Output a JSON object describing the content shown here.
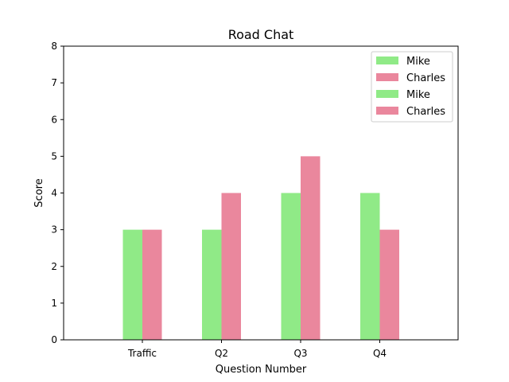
{
  "chart_data": {
    "type": "bar",
    "title": "Road Chat",
    "xlabel": "Question Number",
    "ylabel": "Score",
    "categories": [
      "Traffic",
      "Q2",
      "Q3",
      "Q4"
    ],
    "series": [
      {
        "name": "Mike",
        "values": [
          3,
          3,
          4,
          4
        ],
        "color": "#90ea87"
      },
      {
        "name": "Charles",
        "values": [
          3,
          4,
          5,
          3
        ],
        "color": "#ea879d"
      }
    ],
    "legend": [
      {
        "label": "Mike",
        "color": "#90ea87"
      },
      {
        "label": "Charles",
        "color": "#ea879d"
      },
      {
        "label": "Mike",
        "color": "#90ea87"
      },
      {
        "label": "Charles",
        "color": "#ea879d"
      }
    ],
    "legend_position": "top-right",
    "ylim": [
      0,
      8
    ],
    "yticks": [
      0,
      1,
      2,
      3,
      4,
      5,
      6,
      7,
      8
    ],
    "grid": false
  }
}
